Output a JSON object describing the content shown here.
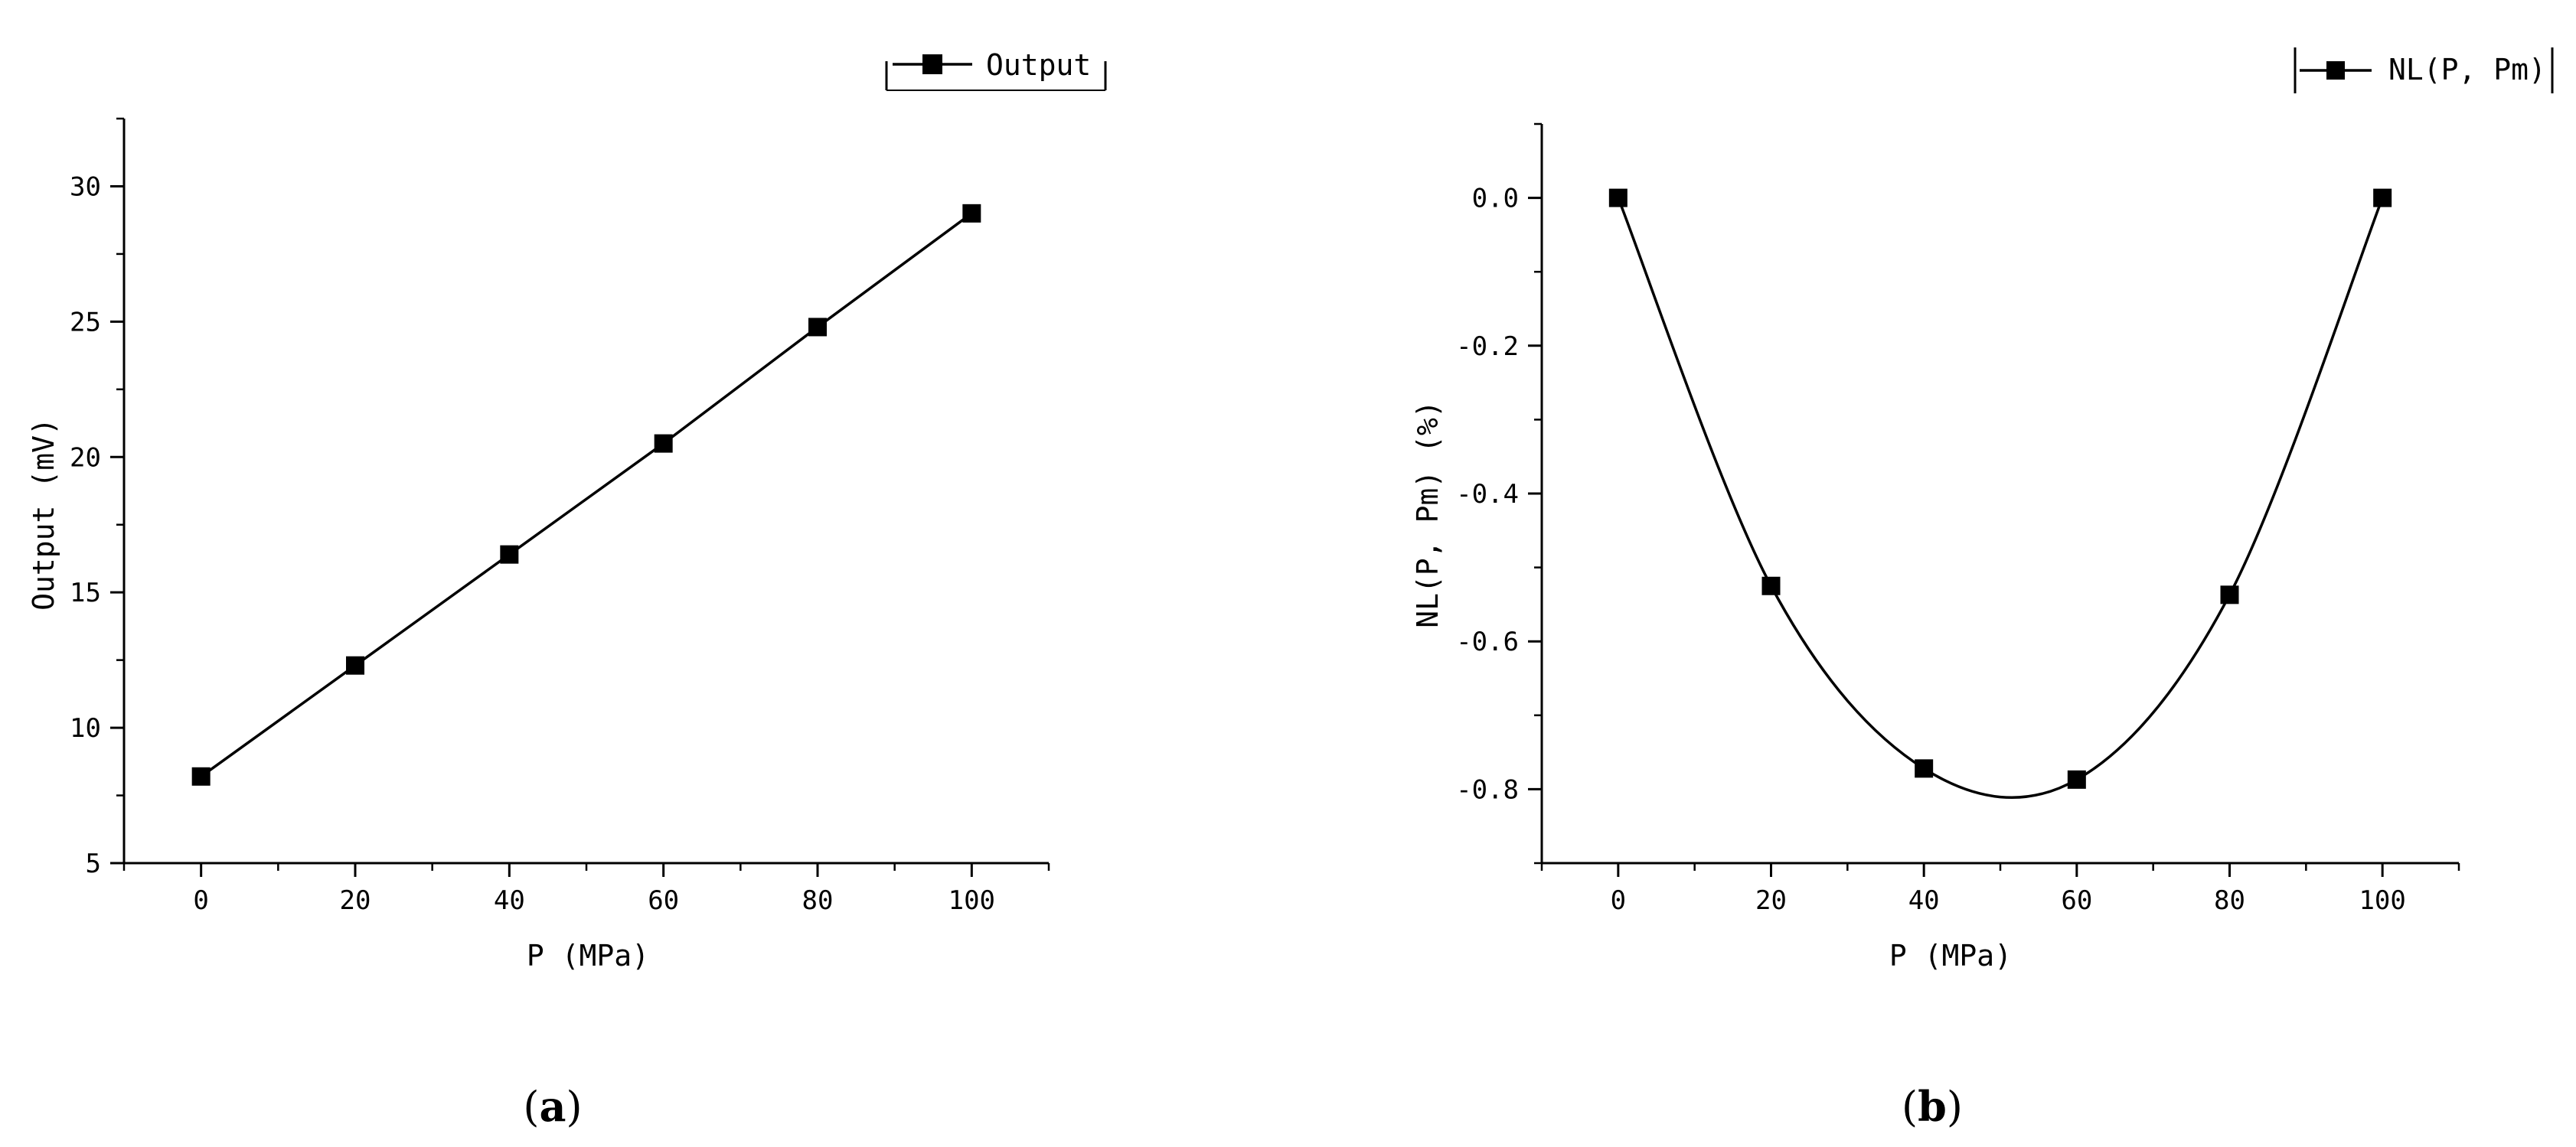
{
  "chart_data": [
    {
      "type": "line",
      "panel_label": "(a)",
      "panel_label_parts": {
        "open": "(",
        "letter": "a",
        "close": ")"
      },
      "xlabel": "P (MPa)",
      "ylabel": "Output (mV)",
      "x": [
        0,
        20,
        40,
        60,
        80,
        100
      ],
      "series": [
        {
          "name": "Output",
          "values": [
            8.2,
            12.3,
            16.4,
            20.5,
            24.8,
            29.0
          ]
        }
      ],
      "xlim": [
        -10,
        110
      ],
      "ylim": [
        5,
        32.5
      ],
      "xticks": [
        0,
        20,
        40,
        60,
        80,
        100
      ],
      "yticks": [
        5,
        10,
        15,
        20,
        25,
        30
      ],
      "curve": "linear",
      "grid": false,
      "legend_position": "top-right"
    },
    {
      "type": "line",
      "panel_label": "(b)",
      "panel_label_parts": {
        "open": "(",
        "letter": "b",
        "close": ")"
      },
      "xlabel": "P (MPa)",
      "ylabel": "NL(P, Pm) (%)",
      "x": [
        0,
        20,
        40,
        60,
        80,
        100
      ],
      "series": [
        {
          "name": "NL(P, Pm)",
          "values": [
            0.0,
            -0.525,
            -0.772,
            -0.787,
            -0.537,
            0.0
          ]
        }
      ],
      "xlim": [
        -10,
        110
      ],
      "ylim": [
        -0.9,
        0.1
      ],
      "xticks": [
        0,
        20,
        40,
        60,
        80,
        100
      ],
      "yticks": [
        0.0,
        -0.2,
        -0.4,
        -0.6,
        -0.8
      ],
      "ytick_labels": [
        "0.0",
        "-0.2",
        "-0.4",
        "-0.6",
        "-0.8"
      ],
      "curve": "smooth",
      "grid": false,
      "legend_position": "top-right"
    }
  ]
}
